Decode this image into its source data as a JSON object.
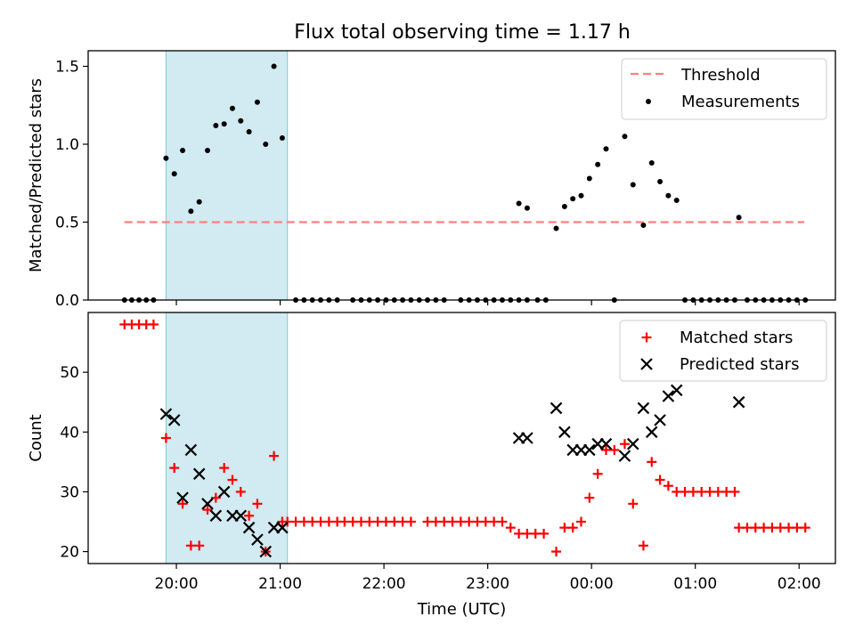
{
  "figure": {
    "title": "Flux total observing time = 1.17 h"
  },
  "colors": {
    "threshold": "#ff7f7f",
    "shade": "#add8e6",
    "measurement": "#000000",
    "matched": "#ff0000",
    "predicted": "#000000"
  },
  "chart_data": [
    {
      "type": "scatter",
      "title": "Flux total observing time = 1.17 h",
      "xlabel": "",
      "ylabel": "Matched/Predicted stars",
      "x_unit": "hours relative to 00:00 UTC",
      "xlim": [
        -4.85,
        2.35
      ],
      "ylim": [
        0.0,
        1.6
      ],
      "yticks": [
        "0.0",
        "0.5",
        "1.0",
        "1.5"
      ],
      "xticks": [
        "20:00",
        "21:00",
        "22:00",
        "23:00",
        "00:00",
        "01:00",
        "02:00"
      ],
      "xtick_values": [
        -4,
        -3,
        -2,
        -1,
        0,
        1,
        2
      ],
      "shaded_interval": [
        -4.1,
        -2.93
      ],
      "legend": [
        "Threshold",
        "Measurements"
      ],
      "legend_position": "top-right",
      "threshold": {
        "name": "Threshold",
        "y": 0.5,
        "x_range": [
          -4.5,
          2.05
        ]
      },
      "series": [
        {
          "name": "Measurements",
          "points": [
            [
              -4.5,
              0
            ],
            [
              -4.43,
              0
            ],
            [
              -4.36,
              0
            ],
            [
              -4.29,
              0
            ],
            [
              -4.22,
              0
            ],
            [
              -4.1,
              0.91
            ],
            [
              -4.02,
              0.81
            ],
            [
              -3.94,
              0.96
            ],
            [
              -3.86,
              0.57
            ],
            [
              -3.78,
              0.63
            ],
            [
              -3.7,
              0.96
            ],
            [
              -3.62,
              1.12
            ],
            [
              -3.54,
              1.13
            ],
            [
              -3.46,
              1.23
            ],
            [
              -3.38,
              1.15
            ],
            [
              -3.3,
              1.08
            ],
            [
              -3.22,
              1.27
            ],
            [
              -3.14,
              1.0
            ],
            [
              -3.06,
              1.5
            ],
            [
              -2.98,
              1.04
            ],
            [
              -2.85,
              0
            ],
            [
              -2.77,
              0
            ],
            [
              -2.69,
              0
            ],
            [
              -2.61,
              0
            ],
            [
              -2.53,
              0
            ],
            [
              -2.45,
              0
            ],
            [
              -2.3,
              0
            ],
            [
              -2.22,
              0
            ],
            [
              -2.14,
              0
            ],
            [
              -2.06,
              0
            ],
            [
              -1.98,
              0
            ],
            [
              -1.9,
              0
            ],
            [
              -1.82,
              0
            ],
            [
              -1.74,
              0
            ],
            [
              -1.66,
              0
            ],
            [
              -1.58,
              0
            ],
            [
              -1.5,
              0
            ],
            [
              -1.42,
              0
            ],
            [
              -1.26,
              0
            ],
            [
              -1.18,
              0
            ],
            [
              -1.1,
              0
            ],
            [
              -1.02,
              0
            ],
            [
              -0.94,
              0
            ],
            [
              -0.86,
              0
            ],
            [
              -0.78,
              0
            ],
            [
              -0.7,
              0
            ],
            [
              -0.62,
              0
            ],
            [
              -0.7,
              0.62
            ],
            [
              -0.62,
              0.59
            ],
            [
              -0.52,
              0
            ],
            [
              -0.44,
              0
            ],
            [
              -0.34,
              0.46
            ],
            [
              -0.26,
              0.6
            ],
            [
              -0.18,
              0.65
            ],
            [
              -0.1,
              0.67
            ],
            [
              -0.02,
              0.78
            ],
            [
              0.06,
              0.87
            ],
            [
              0.14,
              0.97
            ],
            [
              0.22,
              0
            ],
            [
              0.32,
              1.05
            ],
            [
              0.4,
              0.74
            ],
            [
              0.5,
              0.48
            ],
            [
              0.58,
              0.88
            ],
            [
              0.66,
              0.76
            ],
            [
              0.74,
              0.67
            ],
            [
              0.82,
              0.64
            ],
            [
              0.9,
              0
            ],
            [
              0.98,
              0
            ],
            [
              1.06,
              0
            ],
            [
              1.14,
              0
            ],
            [
              1.22,
              0
            ],
            [
              1.3,
              0
            ],
            [
              1.38,
              0
            ],
            [
              1.42,
              0.53
            ],
            [
              1.5,
              0
            ],
            [
              1.58,
              0
            ],
            [
              1.66,
              0
            ],
            [
              1.74,
              0
            ],
            [
              1.82,
              0
            ],
            [
              1.9,
              0
            ],
            [
              1.98,
              0
            ],
            [
              2.06,
              0
            ]
          ]
        }
      ]
    },
    {
      "type": "scatter",
      "xlabel": "Time (UTC)",
      "ylabel": "Count",
      "x_unit": "hours relative to 00:00 UTC",
      "xlim": [
        -4.85,
        2.35
      ],
      "ylim": [
        18,
        60
      ],
      "yticks": [
        "20",
        "30",
        "40",
        "50"
      ],
      "xticks": [
        "20:00",
        "21:00",
        "22:00",
        "23:00",
        "00:00",
        "01:00",
        "02:00"
      ],
      "xtick_values": [
        -4,
        -3,
        -2,
        -1,
        0,
        1,
        2
      ],
      "shaded_interval": [
        -4.1,
        -2.93
      ],
      "legend": [
        "Matched stars",
        "Predicted stars"
      ],
      "legend_position": "top-right",
      "series": [
        {
          "name": "Matched stars",
          "marker": "+",
          "points": [
            [
              -4.5,
              58
            ],
            [
              -4.43,
              58
            ],
            [
              -4.36,
              58
            ],
            [
              -4.29,
              58
            ],
            [
              -4.22,
              58
            ],
            [
              -4.1,
              39
            ],
            [
              -4.02,
              34
            ],
            [
              -3.94,
              28
            ],
            [
              -3.86,
              21
            ],
            [
              -3.78,
              21
            ],
            [
              -3.7,
              27
            ],
            [
              -3.62,
              29
            ],
            [
              -3.54,
              34
            ],
            [
              -3.46,
              32
            ],
            [
              -3.38,
              30
            ],
            [
              -3.3,
              26
            ],
            [
              -3.22,
              28
            ],
            [
              -3.14,
              20
            ],
            [
              -3.06,
              36
            ],
            [
              -2.98,
              25
            ],
            [
              -2.93,
              25
            ],
            [
              -2.85,
              25
            ],
            [
              -2.77,
              25
            ],
            [
              -2.69,
              25
            ],
            [
              -2.61,
              25
            ],
            [
              -2.53,
              25
            ],
            [
              -2.45,
              25
            ],
            [
              -2.38,
              25
            ],
            [
              -2.3,
              25
            ],
            [
              -2.22,
              25
            ],
            [
              -2.14,
              25
            ],
            [
              -2.06,
              25
            ],
            [
              -1.98,
              25
            ],
            [
              -1.9,
              25
            ],
            [
              -1.82,
              25
            ],
            [
              -1.74,
              25
            ],
            [
              -1.58,
              25
            ],
            [
              -1.5,
              25
            ],
            [
              -1.42,
              25
            ],
            [
              -1.34,
              25
            ],
            [
              -1.26,
              25
            ],
            [
              -1.18,
              25
            ],
            [
              -1.1,
              25
            ],
            [
              -1.02,
              25
            ],
            [
              -0.94,
              25
            ],
            [
              -0.86,
              25
            ],
            [
              -0.78,
              24
            ],
            [
              -0.7,
              23
            ],
            [
              -0.62,
              23
            ],
            [
              -0.54,
              23
            ],
            [
              -0.46,
              23
            ],
            [
              -0.34,
              20
            ],
            [
              -0.26,
              24
            ],
            [
              -0.18,
              24
            ],
            [
              -0.1,
              25
            ],
            [
              -0.02,
              29
            ],
            [
              0.06,
              33
            ],
            [
              0.14,
              37
            ],
            [
              0.22,
              37
            ],
            [
              0.32,
              38
            ],
            [
              0.4,
              28
            ],
            [
              0.5,
              21
            ],
            [
              0.58,
              35
            ],
            [
              0.66,
              32
            ],
            [
              0.74,
              31
            ],
            [
              0.82,
              30
            ],
            [
              0.9,
              30
            ],
            [
              0.98,
              30
            ],
            [
              1.06,
              30
            ],
            [
              1.14,
              30
            ],
            [
              1.22,
              30
            ],
            [
              1.3,
              30
            ],
            [
              1.38,
              30
            ],
            [
              1.42,
              24
            ],
            [
              1.5,
              24
            ],
            [
              1.58,
              24
            ],
            [
              1.66,
              24
            ],
            [
              1.74,
              24
            ],
            [
              1.82,
              24
            ],
            [
              1.9,
              24
            ],
            [
              1.98,
              24
            ],
            [
              2.06,
              24
            ]
          ]
        },
        {
          "name": "Predicted stars",
          "marker": "x",
          "points": [
            [
              -4.1,
              43
            ],
            [
              -4.02,
              42
            ],
            [
              -3.94,
              29
            ],
            [
              -3.86,
              37
            ],
            [
              -3.78,
              33
            ],
            [
              -3.7,
              28
            ],
            [
              -3.62,
              26
            ],
            [
              -3.54,
              30
            ],
            [
              -3.46,
              26
            ],
            [
              -3.38,
              26
            ],
            [
              -3.3,
              24
            ],
            [
              -3.22,
              22
            ],
            [
              -3.14,
              20
            ],
            [
              -3.06,
              24
            ],
            [
              -2.98,
              24
            ],
            [
              -0.7,
              39
            ],
            [
              -0.62,
              39
            ],
            [
              -0.34,
              44
            ],
            [
              -0.26,
              40
            ],
            [
              -0.18,
              37
            ],
            [
              -0.1,
              37
            ],
            [
              -0.02,
              37
            ],
            [
              0.06,
              38
            ],
            [
              0.14,
              38
            ],
            [
              0.32,
              36
            ],
            [
              0.4,
              38
            ],
            [
              0.5,
              44
            ],
            [
              0.58,
              40
            ],
            [
              0.66,
              42
            ],
            [
              0.74,
              46
            ],
            [
              0.82,
              47
            ],
            [
              1.42,
              45
            ]
          ]
        }
      ]
    }
  ]
}
